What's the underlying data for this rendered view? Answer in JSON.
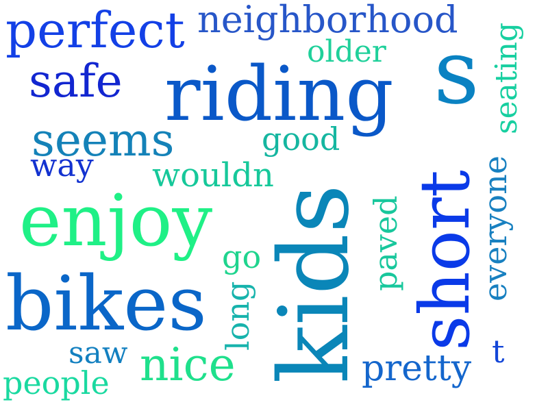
{
  "words": {
    "perfect": {
      "text": "perfect",
      "color": "#1340e6"
    },
    "neighborhood": {
      "text": "neighborhood",
      "color": "#2756c8"
    },
    "older": {
      "text": "older",
      "color": "#1fd09a"
    },
    "safe": {
      "text": "safe",
      "color": "#1226d0"
    },
    "riding": {
      "text": "riding",
      "color": "#0a58c8"
    },
    "s": {
      "text": "s",
      "color": "#0a82c2"
    },
    "seating": {
      "text": "seating",
      "color": "#17cfa0"
    },
    "seems": {
      "text": "seems",
      "color": "#1482b8"
    },
    "good": {
      "text": "good",
      "color": "#15b6a0"
    },
    "way": {
      "text": "way",
      "color": "#1332d0"
    },
    "wouldn": {
      "text": "wouldn",
      "color": "#16c89a"
    },
    "enjoy": {
      "text": "enjoy",
      "color": "#1ff086"
    },
    "go": {
      "text": "go",
      "color": "#1fd48e"
    },
    "kids": {
      "text": "kids",
      "color": "#0a86b8"
    },
    "paved": {
      "text": "paved",
      "color": "#18c79c"
    },
    "short": {
      "text": "short",
      "color": "#0a3ae8"
    },
    "everyone": {
      "text": "everyone",
      "color": "#1880c0"
    },
    "bikes": {
      "text": "bikes",
      "color": "#0a66c8"
    },
    "long": {
      "text": "long",
      "color": "#17b3ac"
    },
    "saw": {
      "text": "saw",
      "color": "#1380c0"
    },
    "nice": {
      "text": "nice",
      "color": "#1fe08c"
    },
    "t": {
      "text": "t",
      "color": "#1346d8"
    },
    "pretty": {
      "text": "pretty",
      "color": "#1466cc"
    },
    "people": {
      "text": "people",
      "color": "#1ad9a0"
    }
  }
}
